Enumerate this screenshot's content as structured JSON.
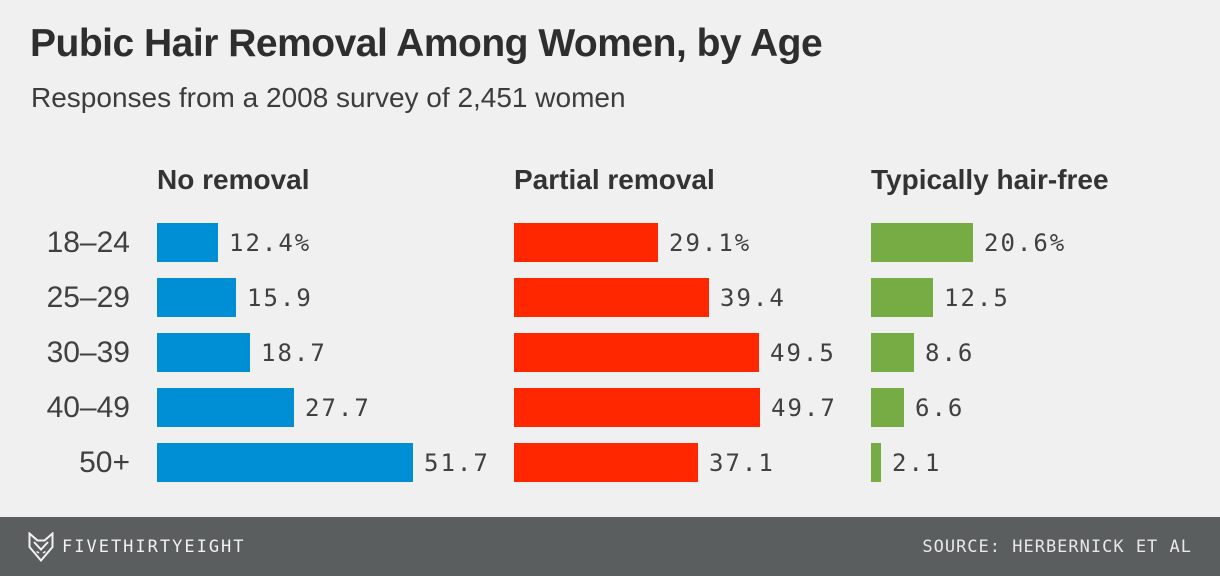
{
  "header": {
    "title": "Pubic Hair Removal Among Women, by Age",
    "subtitle": "Responses from a 2008 survey of 2,451 women"
  },
  "chart_data": {
    "type": "bar",
    "orientation": "horizontal",
    "categories": [
      "18–24",
      "25–29",
      "30–39",
      "40–49",
      "50+"
    ],
    "series": [
      {
        "name": "No removal",
        "color": "#008FD5",
        "values": [
          12.4,
          15.9,
          18.7,
          27.7,
          51.7
        ]
      },
      {
        "name": "Partial removal",
        "color": "#FF2700",
        "values": [
          29.1,
          39.4,
          49.5,
          49.7,
          37.1
        ]
      },
      {
        "name": "Typically hair-free",
        "color": "#77AB43",
        "values": [
          20.6,
          12.5,
          8.6,
          6.6,
          2.1
        ]
      }
    ],
    "unit": "percent",
    "value_suffix_first_row": "%",
    "xlim": [
      0,
      55
    ],
    "grid": false,
    "legend": "column-headers",
    "value_labels": "outside-end"
  },
  "footer": {
    "brand": "FIVETHIRTYEIGHT",
    "source": "SOURCE: HERBERNICK ET AL",
    "logo_icon": "fox-logo-icon"
  },
  "colors": {
    "background": "#F0F0F0",
    "title_text": "#2E2E2E",
    "body_text": "#404040",
    "footer_background": "#5A5E5E",
    "footer_text": "#F2F2F2",
    "series_blue": "#008FD5",
    "series_red": "#FF2700",
    "series_green": "#77AB43"
  }
}
